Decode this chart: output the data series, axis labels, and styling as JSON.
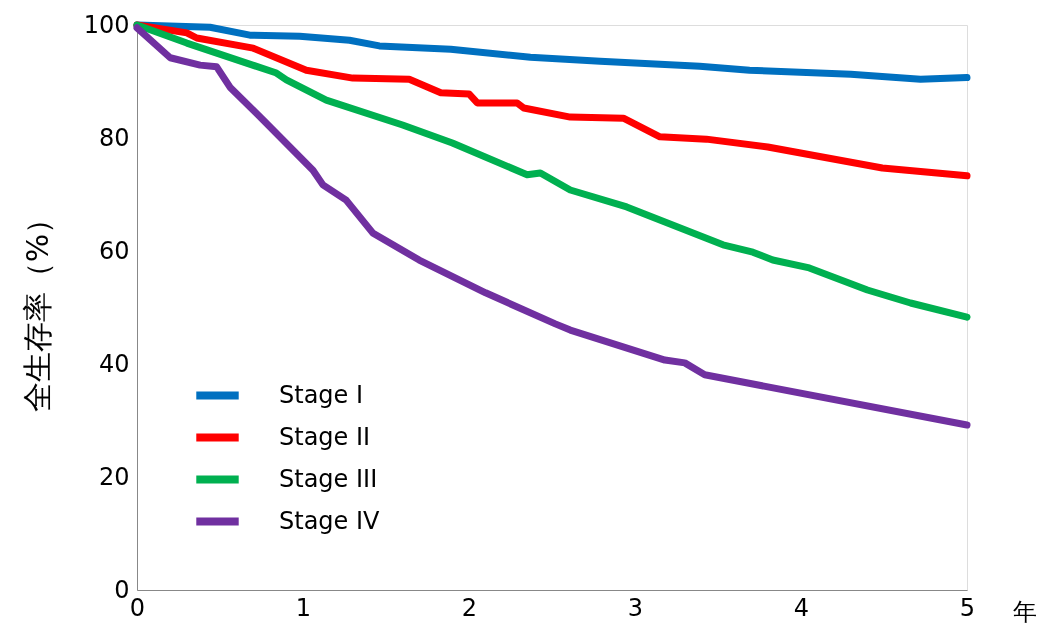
{
  "chart_data": {
    "type": "line",
    "xlabel": "年",
    "ylabel": "全生存率（%）",
    "xlim": [
      0,
      5
    ],
    "ylim": [
      0,
      100
    ],
    "xticks": [
      0,
      1,
      2,
      3,
      4,
      5
    ],
    "yticks": [
      0,
      20,
      40,
      60,
      80,
      100
    ],
    "grid": false,
    "legend": "bottom left",
    "marker": "none",
    "line_style": "solid",
    "series": [
      {
        "name": "Stage I",
        "color": "#0070c0",
        "x": [
          0,
          0.44,
          0.68,
          0.98,
          1.28,
          1.46,
          1.89,
          2.37,
          2.79,
          3.39,
          3.69,
          4.3,
          4.72,
          5
        ],
        "values": [
          100,
          99.6,
          98.2,
          98,
          97.3,
          96.3,
          95.7,
          94.3,
          93.6,
          92.7,
          92,
          91.3,
          90.4,
          90.7
        ]
      },
      {
        "name": "Stage II",
        "color": "#ff0000",
        "x": [
          0,
          0.3,
          0.36,
          0.7,
          1.02,
          1.3,
          1.64,
          1.83,
          2.0,
          2.05,
          2.29,
          2.33,
          2.61,
          2.93,
          3.15,
          3.43,
          3.8,
          4.49,
          5
        ],
        "values": [
          100,
          98.6,
          97.7,
          95.9,
          92,
          90.6,
          90.4,
          88,
          87.8,
          86.2,
          86.2,
          85.3,
          83.7,
          83.5,
          80.2,
          79.8,
          78.4,
          74.7,
          73.3
        ]
      },
      {
        "name": "Stage III",
        "color": "#00b050",
        "x": [
          0,
          0.3,
          0.84,
          0.9,
          1.14,
          1.6,
          1.9,
          2.35,
          2.43,
          2.61,
          2.95,
          3.53,
          3.71,
          3.83,
          4.05,
          4.4,
          4.66,
          5
        ],
        "values": [
          100,
          96.8,
          91.5,
          90.3,
          86.7,
          82.3,
          79.1,
          73.5,
          73.8,
          70.8,
          67.8,
          61.1,
          59.8,
          58.4,
          57,
          53.1,
          50.8,
          48.3
        ]
      },
      {
        "name": "Stage IV",
        "color": "#7030a0",
        "x": [
          0,
          0.2,
          0.38,
          0.48,
          0.56,
          0.76,
          1.06,
          1.12,
          1.26,
          1.42,
          1.7,
          2.1,
          2.52,
          2.61,
          3.18,
          3.3,
          3.42,
          5
        ],
        "values": [
          99.5,
          94.2,
          92.9,
          92.6,
          89,
          83.2,
          74.3,
          71.7,
          69,
          63.2,
          58.4,
          52.6,
          47.1,
          46,
          40.7,
          40.2,
          38.1,
          29.2
        ]
      }
    ]
  }
}
